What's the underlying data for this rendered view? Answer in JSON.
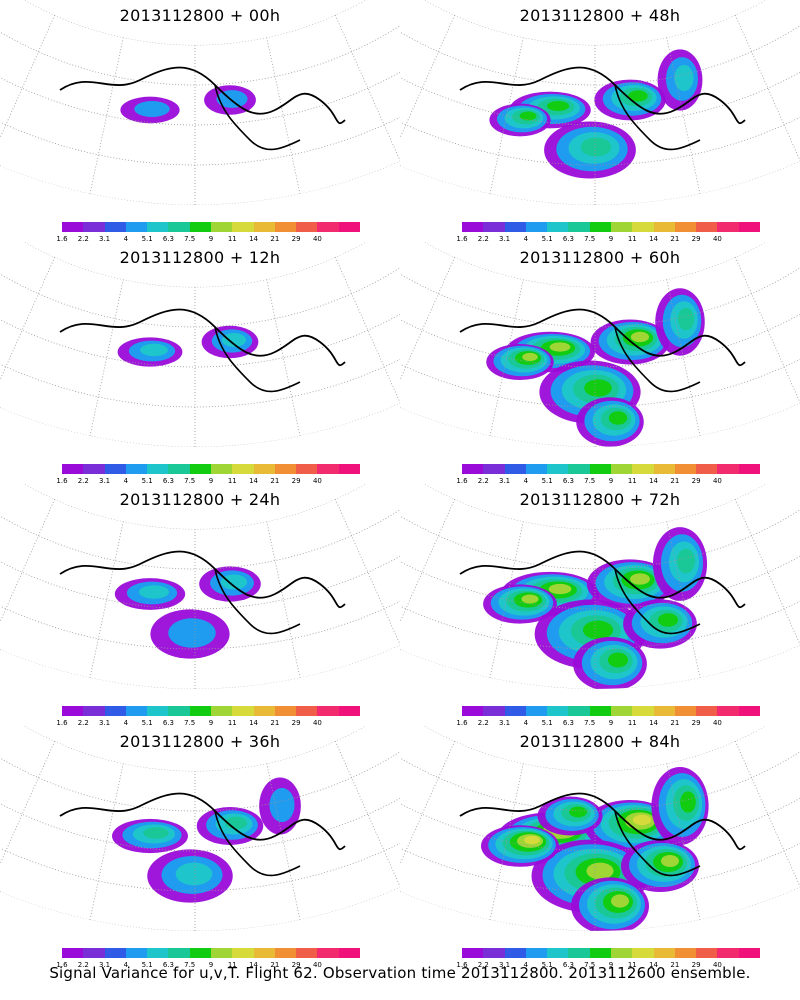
{
  "panels": [
    {
      "title": "2013112800 + 00h",
      "lead": "00h",
      "intensity": 0.2
    },
    {
      "title": "2013112800 + 48h",
      "lead": "48h",
      "intensity": 0.6
    },
    {
      "title": "2013112800 + 12h",
      "lead": "12h",
      "intensity": 0.3
    },
    {
      "title": "2013112800 + 60h",
      "lead": "60h",
      "intensity": 0.75
    },
    {
      "title": "2013112800 + 24h",
      "lead": "24h",
      "intensity": 0.4
    },
    {
      "title": "2013112800 + 72h",
      "lead": "72h",
      "intensity": 0.9
    },
    {
      "title": "2013112800 + 36h",
      "lead": "36h",
      "intensity": 0.5
    },
    {
      "title": "2013112800 + 84h",
      "lead": "84h",
      "intensity": 1.0
    }
  ],
  "colorbar": {
    "labels": [
      "1.6",
      "2.2",
      "3.1",
      "4",
      "5.1",
      "6.3",
      "7.5",
      "9",
      "11",
      "14",
      "21",
      "29",
      "40"
    ],
    "colors": [
      "#9a0bd9",
      "#7a2ed8",
      "#2f5be6",
      "#1f9bef",
      "#1ec6cc",
      "#19c896",
      "#11cc11",
      "#9fd635",
      "#d6da3a",
      "#e8ba35",
      "#f08f33",
      "#f05e4a",
      "#f22a6e",
      "#f0127a"
    ]
  },
  "footer": "Signal Variance for u,v,T. Flight 62. Observation time 2013112800. 2013112600 ensemble."
}
